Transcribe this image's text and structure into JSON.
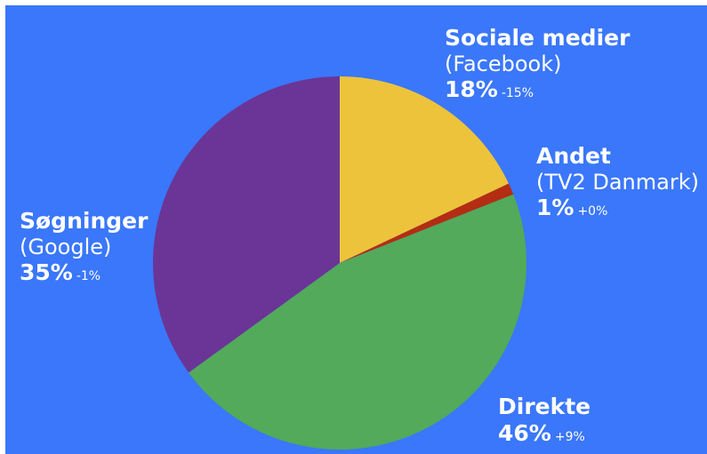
{
  "chart_data": {
    "type": "pie",
    "title": "",
    "slices": [
      {
        "key": "sociale",
        "name": "Sociale medier",
        "sub": "(Facebook)",
        "value": 18,
        "label": "18%",
        "change": "-15%",
        "color": "#edc33b"
      },
      {
        "key": "andet",
        "name": "Andet",
        "sub": "(TV2 Danmark)",
        "value": 1,
        "label": "1%",
        "change": "+0%",
        "color": "#b42d12"
      },
      {
        "key": "direkte",
        "name": "Direkte",
        "sub": "",
        "value": 46,
        "label": "46%",
        "change": "+9%",
        "color": "#52aa5a"
      },
      {
        "key": "sogning",
        "name": "Søgninger",
        "sub": "(Google)",
        "value": 35,
        "label": "35%",
        "change": "-1%",
        "color": "#6a3596"
      }
    ],
    "start_angle": "12 o'clock",
    "direction": "clockwise",
    "legend": "none",
    "background_color": "#3a77fb"
  }
}
